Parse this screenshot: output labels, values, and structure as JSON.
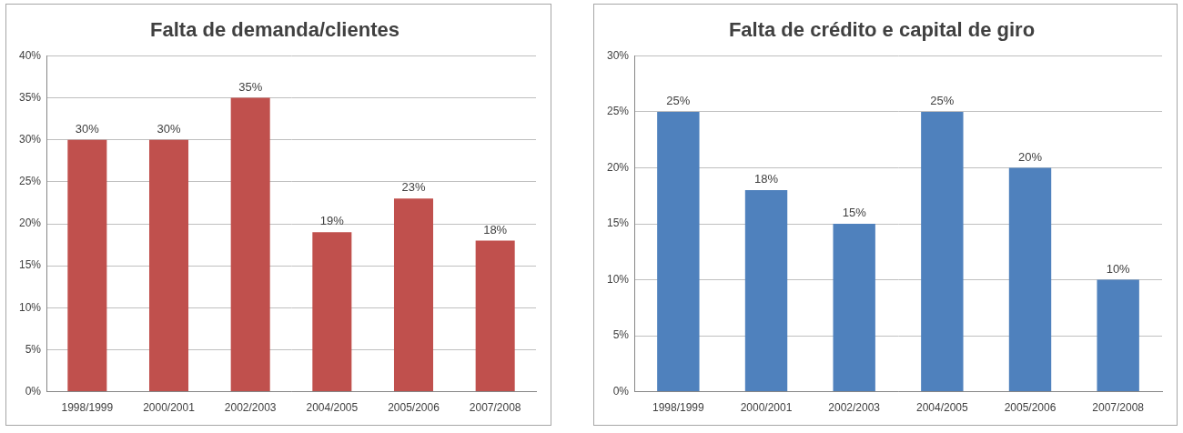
{
  "chart_data": [
    {
      "type": "bar",
      "title": "Falta de demanda/clientes",
      "categories": [
        "1998/1999",
        "2000/2001",
        "2002/2003",
        "2004/2005",
        "2005/2006",
        "2007/2008"
      ],
      "values": [
        30,
        30,
        35,
        19,
        23,
        18
      ],
      "value_labels": [
        "30%",
        "30%",
        "35%",
        "19%",
        "23%",
        "18%"
      ],
      "color": "#c0504d",
      "ylim": [
        0,
        40
      ],
      "yticks": [
        {
          "value": 0,
          "label": "0%"
        },
        {
          "value": 5,
          "label": "5%"
        },
        {
          "value": 10,
          "label": "10%"
        },
        {
          "value": 15,
          "label": "15%"
        },
        {
          "value": 20,
          "label": "20%"
        },
        {
          "value": 25,
          "label": "25%"
        },
        {
          "value": 30,
          "label": "30%"
        },
        {
          "value": 35,
          "label": "35%"
        },
        {
          "value": 40,
          "label": "40%"
        }
      ],
      "grid": true,
      "data_labels": true
    },
    {
      "type": "bar",
      "title": "Falta de crédito e capital de giro",
      "categories": [
        "1998/1999",
        "2000/2001",
        "2002/2003",
        "2004/2005",
        "2005/2006",
        "2007/2008"
      ],
      "values": [
        25,
        18,
        15,
        25,
        20,
        10
      ],
      "value_labels": [
        "25%",
        "18%",
        "15%",
        "25%",
        "20%",
        "10%"
      ],
      "color": "#4f81bd",
      "ylim": [
        0,
        30
      ],
      "yticks": [
        {
          "value": 0,
          "label": "0%"
        },
        {
          "value": 5,
          "label": "5%"
        },
        {
          "value": 10,
          "label": "10%"
        },
        {
          "value": 15,
          "label": "15%"
        },
        {
          "value": 20,
          "label": "20%"
        },
        {
          "value": 25,
          "label": "25%"
        },
        {
          "value": 30,
          "label": "30%"
        }
      ],
      "grid": true,
      "data_labels": true
    }
  ]
}
